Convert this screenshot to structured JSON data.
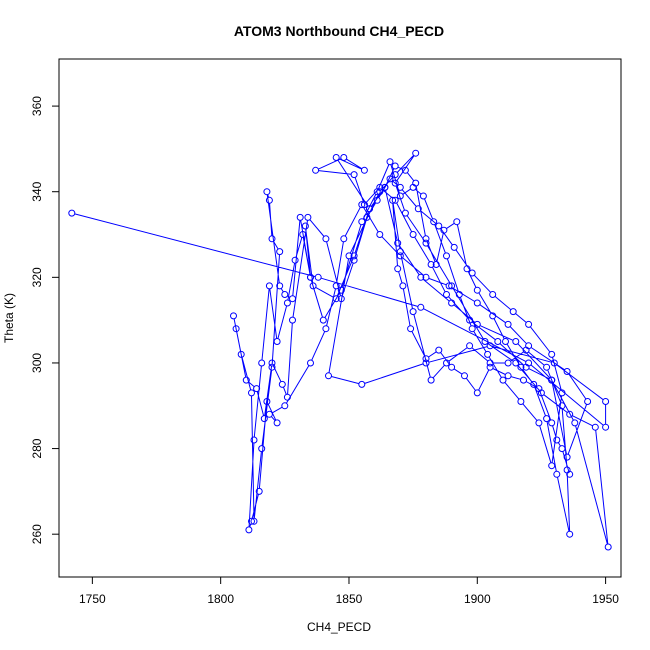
{
  "chart_data": {
    "type": "line",
    "title": "ATOM3 Northbound CH4_PECD",
    "xlabel": "CH4_PECD",
    "ylabel": "Theta (K)",
    "xlim": [
      1737,
      1956
    ],
    "ylim": [
      250,
      371
    ],
    "xticks": [
      1750,
      1800,
      1850,
      1900,
      1950
    ],
    "yticks": [
      260,
      280,
      300,
      320,
      340,
      360
    ],
    "grid": false,
    "color": "#0000ff",
    "series": [
      {
        "points": [
          [
            1742,
            335
          ],
          [
            1838,
            320
          ],
          [
            1878,
            313
          ],
          [
            1920,
            300
          ],
          [
            1950,
            285
          ],
          [
            1950,
            291
          ],
          [
            1930,
            300
          ],
          [
            1905,
            304
          ],
          [
            1880,
            300
          ],
          [
            1855,
            295
          ],
          [
            1842,
            297
          ],
          [
            1850,
            325
          ],
          [
            1862,
            340
          ],
          [
            1868,
            344
          ],
          [
            1876,
            349
          ],
          [
            1868,
            342
          ],
          [
            1872,
            335
          ],
          [
            1880,
            328
          ],
          [
            1890,
            318
          ],
          [
            1903,
            305
          ],
          [
            1915,
            300
          ],
          [
            1925,
            293
          ],
          [
            1936,
            288
          ],
          [
            1946,
            285
          ],
          [
            1951,
            257
          ],
          [
            1938,
            286
          ],
          [
            1929,
            296
          ],
          [
            1915,
            305
          ],
          [
            1900,
            309
          ],
          [
            1890,
            314
          ],
          [
            1878,
            320
          ],
          [
            1869,
            328
          ],
          [
            1864,
            341
          ],
          [
            1858,
            336
          ],
          [
            1845,
            348
          ],
          [
            1856,
            345
          ],
          [
            1848,
            348
          ],
          [
            1837,
            345
          ],
          [
            1852,
            344
          ],
          [
            1856,
            337
          ],
          [
            1862,
            341
          ],
          [
            1868,
            338
          ],
          [
            1875,
            330
          ],
          [
            1882,
            323
          ],
          [
            1888,
            316
          ],
          [
            1897,
            310
          ],
          [
            1908,
            305
          ],
          [
            1919,
            299
          ],
          [
            1929,
            296
          ],
          [
            1935,
            278
          ],
          [
            1943,
            291
          ],
          [
            1935,
            298
          ],
          [
            1920,
            304
          ],
          [
            1912,
            309
          ],
          [
            1900,
            314
          ],
          [
            1889,
            318
          ],
          [
            1880,
            320
          ],
          [
            1870,
            325
          ],
          [
            1862,
            330
          ],
          [
            1855,
            337
          ],
          [
            1848,
            329
          ],
          [
            1845,
            318
          ],
          [
            1841,
            308
          ],
          [
            1835,
            300
          ],
          [
            1825,
            290
          ],
          [
            1819,
            288
          ],
          [
            1822,
            286
          ],
          [
            1818,
            291
          ],
          [
            1815,
            270
          ],
          [
            1812,
            263
          ],
          [
            1811,
            261
          ],
          [
            1813,
            282
          ],
          [
            1816,
            300
          ],
          [
            1819,
            318
          ],
          [
            1822,
            305
          ],
          [
            1826,
            314
          ],
          [
            1829,
            324
          ],
          [
            1832,
            330
          ],
          [
            1835,
            320
          ],
          [
            1840,
            310
          ],
          [
            1847,
            317
          ],
          [
            1855,
            333
          ],
          [
            1861,
            340
          ],
          [
            1866,
            347
          ],
          [
            1870,
            339
          ],
          [
            1875,
            341
          ],
          [
            1879,
            339
          ],
          [
            1883,
            333
          ],
          [
            1888,
            325
          ],
          [
            1893,
            316
          ],
          [
            1898,
            308
          ],
          [
            1904,
            302
          ],
          [
            1910,
            296
          ],
          [
            1917,
            291
          ],
          [
            1924,
            286
          ],
          [
            1929,
            276
          ],
          [
            1933,
            293
          ],
          [
            1929,
            302
          ],
          [
            1920,
            309
          ],
          [
            1914,
            312
          ],
          [
            1906,
            316
          ],
          [
            1898,
            321
          ],
          [
            1891,
            327
          ],
          [
            1885,
            332
          ],
          [
            1877,
            336
          ],
          [
            1870,
            341
          ],
          [
            1866,
            343
          ],
          [
            1861,
            338
          ],
          [
            1857,
            334
          ],
          [
            1852,
            324
          ],
          [
            1847,
            315
          ],
          [
            1841,
            329
          ],
          [
            1834,
            334
          ],
          [
            1828,
            310
          ],
          [
            1826,
            292
          ],
          [
            1824,
            295
          ],
          [
            1820,
            300
          ],
          [
            1817,
            287
          ],
          [
            1814,
            294
          ],
          [
            1810,
            296
          ],
          [
            1806,
            308
          ],
          [
            1805,
            311
          ],
          [
            1808,
            302
          ],
          [
            1812,
            293
          ],
          [
            1813,
            263
          ],
          [
            1816,
            280
          ],
          [
            1820,
            299
          ],
          [
            1823,
            326
          ],
          [
            1820,
            329
          ],
          [
            1819,
            338
          ],
          [
            1818,
            340
          ],
          [
            1823,
            318
          ],
          [
            1825,
            316
          ],
          [
            1828,
            315
          ],
          [
            1831,
            334
          ],
          [
            1835,
            320
          ],
          [
            1833,
            332
          ],
          [
            1836,
            318
          ],
          [
            1845,
            315
          ],
          [
            1852,
            325
          ],
          [
            1858,
            336
          ],
          [
            1864,
            341
          ],
          [
            1868,
            346
          ],
          [
            1872,
            345
          ],
          [
            1876,
            342
          ],
          [
            1880,
            329
          ],
          [
            1884,
            323
          ],
          [
            1887,
            331
          ],
          [
            1892,
            333
          ],
          [
            1896,
            322
          ],
          [
            1900,
            317
          ],
          [
            1906,
            311
          ],
          [
            1911,
            305
          ],
          [
            1917,
            299
          ],
          [
            1922,
            295
          ],
          [
            1927,
            287
          ],
          [
            1931,
            274
          ],
          [
            1936,
            260
          ],
          [
            1935,
            275
          ],
          [
            1933,
            290
          ],
          [
            1927,
            299
          ],
          [
            1919,
            303
          ],
          [
            1912,
            300
          ],
          [
            1905,
            300
          ],
          [
            1897,
            304
          ],
          [
            1888,
            300
          ],
          [
            1882,
            296
          ],
          [
            1875,
            312
          ],
          [
            1870,
            326
          ],
          [
            1867,
            338
          ],
          [
            1869,
            322
          ],
          [
            1871,
            318
          ],
          [
            1874,
            308
          ],
          [
            1880,
            301
          ],
          [
            1885,
            303
          ],
          [
            1890,
            299
          ],
          [
            1895,
            297
          ],
          [
            1900,
            293
          ],
          [
            1905,
            299
          ],
          [
            1912,
            297
          ],
          [
            1918,
            296
          ],
          [
            1924,
            294
          ],
          [
            1929,
            286
          ],
          [
            1931,
            282
          ],
          [
            1933,
            280
          ],
          [
            1936,
            274
          ]
        ]
      }
    ]
  }
}
